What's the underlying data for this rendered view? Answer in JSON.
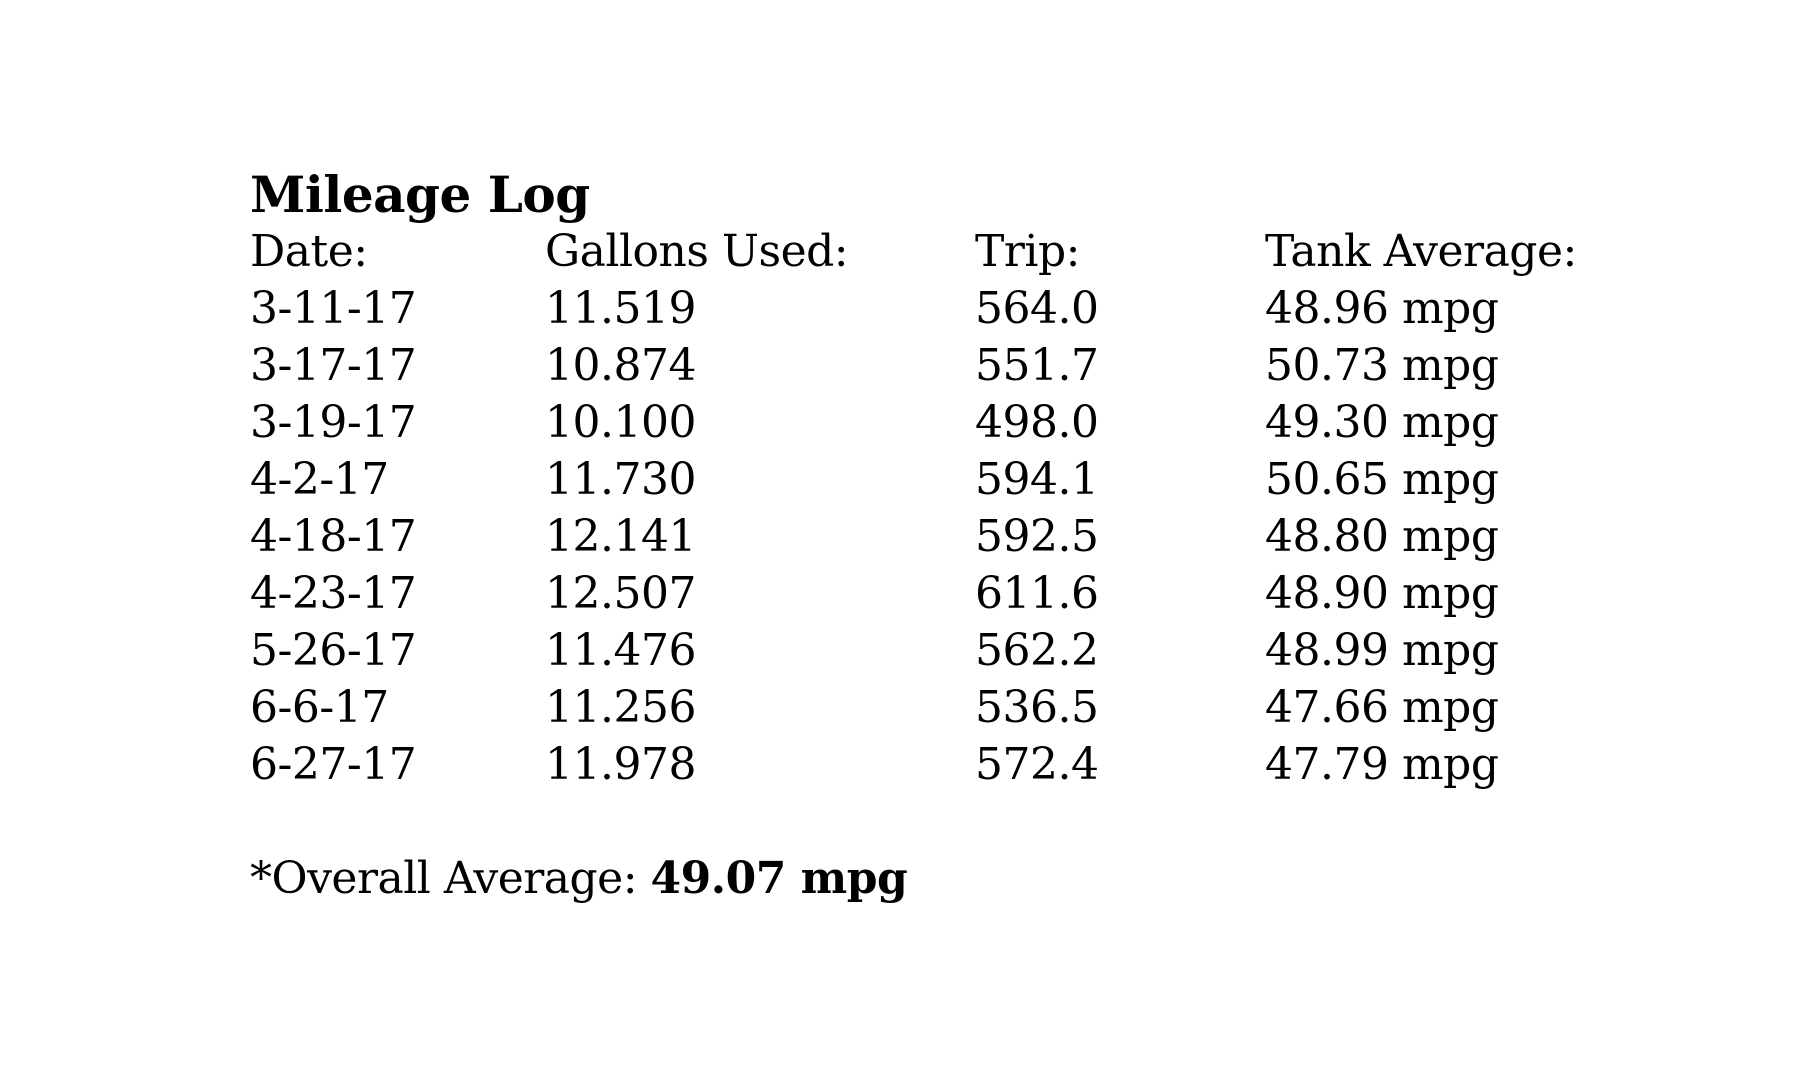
{
  "page": {
    "title": "Mileage Log",
    "table": {
      "columns": [
        "Date:",
        "Gallons Used:",
        "Trip:",
        "Tank Average:"
      ],
      "rows": [
        [
          "3-11-17",
          "11.519",
          "564.0",
          "48.96 mpg"
        ],
        [
          "3-17-17",
          "10.874",
          "551.7",
          "50.73 mpg"
        ],
        [
          "3-19-17",
          "10.100",
          "498.0",
          "49.30 mpg"
        ],
        [
          "4-2-17",
          "11.730",
          "594.1",
          "50.65 mpg"
        ],
        [
          "4-18-17",
          "12.141",
          "592.5",
          "48.80 mpg"
        ],
        [
          "4-23-17",
          "12.507",
          "611.6",
          "48.90 mpg"
        ],
        [
          "5-26-17",
          "11.476",
          "562.2",
          "48.99 mpg"
        ],
        [
          "6-6-17",
          "11.256",
          "536.5",
          "47.66 mpg"
        ],
        [
          "6-27-17",
          "11.978",
          "572.4",
          "47.79 mpg"
        ]
      ]
    },
    "summary": {
      "label": "*Overall Average: ",
      "value": "49.07 mpg"
    }
  }
}
